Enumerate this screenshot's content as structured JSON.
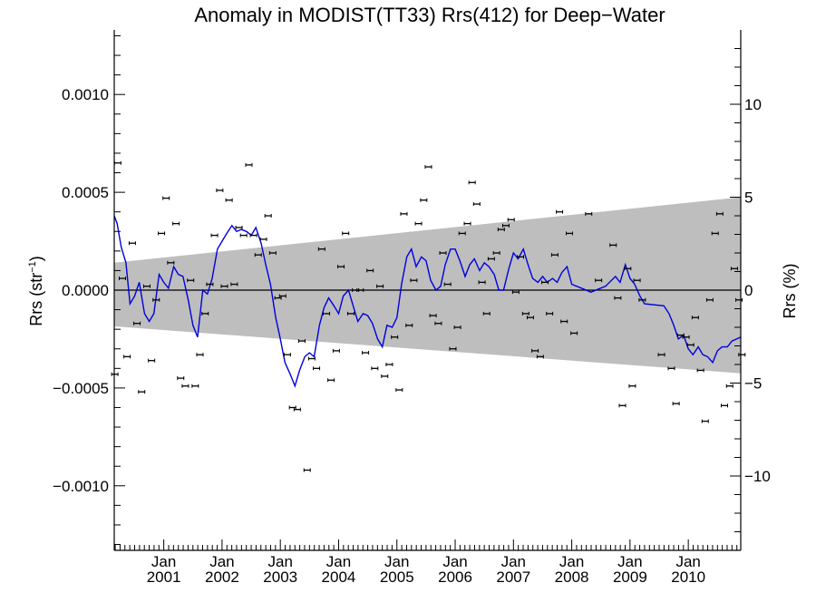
{
  "chart_data": {
    "type": "scatter",
    "title": "Anomaly in MODIST(TT33) Rrs(412) for Deep−Water",
    "ylabel_left_main": "Rrs (str",
    "ylabel_left_sup": "−1",
    "ylabel_left_end": ")",
    "ylabel_right": "Rrs (%)",
    "xlim": [
      2000.15,
      2010.9
    ],
    "ylim": [
      -0.00133,
      0.00133
    ],
    "right_ylim": [
      -14,
      14
    ],
    "x_tick_labels": [
      {
        "x": 2001.0,
        "line1": "Jan",
        "line2": "2001"
      },
      {
        "x": 2002.0,
        "line1": "Jan",
        "line2": "2002"
      },
      {
        "x": 2003.0,
        "line1": "Jan",
        "line2": "2003"
      },
      {
        "x": 2004.0,
        "line1": "Jan",
        "line2": "2004"
      },
      {
        "x": 2005.0,
        "line1": "Jan",
        "line2": "2005"
      },
      {
        "x": 2006.0,
        "line1": "Jan",
        "line2": "2006"
      },
      {
        "x": 2007.0,
        "line1": "Jan",
        "line2": "2007"
      },
      {
        "x": 2008.0,
        "line1": "Jan",
        "line2": "2008"
      },
      {
        "x": 2009.0,
        "line1": "Jan",
        "line2": "2009"
      },
      {
        "x": 2010.0,
        "line1": "Jan",
        "line2": "2010"
      }
    ],
    "y_tick_labels_left": [
      {
        "y": 0.001,
        "label": "0.0010"
      },
      {
        "y": 0.0005,
        "label": "0.0005"
      },
      {
        "y": 0.0,
        "label": "0.0000"
      },
      {
        "y": -0.0005,
        "label": "−0.0005"
      },
      {
        "y": -0.001,
        "label": "−0.0010"
      }
    ],
    "y_tick_labels_right": [
      {
        "y": 10,
        "label": "10"
      },
      {
        "y": 5,
        "label": "5"
      },
      {
        "y": 0,
        "label": "0"
      },
      {
        "y": -5,
        "label": "−5"
      },
      {
        "y": -10,
        "label": "−10"
      }
    ],
    "band": {
      "start": {
        "x": 2000.15,
        "upper": 0.00014,
        "lower": -0.000185
      },
      "end": {
        "x": 2010.9,
        "upper": 0.000475,
        "lower": -0.000425
      },
      "color": "#bebebe"
    },
    "zero_line": true,
    "series": [
      {
        "kind": "points",
        "color": "#000000",
        "x": [
          2000.16,
          2000.21,
          2000.29,
          2000.37,
          2000.46,
          2000.54,
          2000.62,
          2000.71,
          2000.79,
          2000.87,
          2000.96,
          2001.04,
          2001.12,
          2001.21,
          2001.29,
          2001.37,
          2001.46,
          2001.54,
          2001.62,
          2001.71,
          2001.79,
          2001.87,
          2001.96,
          2002.04,
          2002.12,
          2002.21,
          2002.29,
          2002.37,
          2002.46,
          2002.54,
          2002.62,
          2002.71,
          2002.79,
          2002.87,
          2002.96,
          2003.04,
          2003.12,
          2003.21,
          2003.29,
          2003.37,
          2003.46,
          2003.54,
          2003.62,
          2003.71,
          2003.79,
          2003.87,
          2003.96,
          2004.04,
          2004.12,
          2004.21,
          2004.29,
          2004.37,
          2004.46,
          2004.54,
          2004.62,
          2004.71,
          2004.79,
          2004.87,
          2004.96,
          2005.04,
          2005.12,
          2005.21,
          2005.29,
          2005.37,
          2005.46,
          2005.54,
          2005.62,
          2005.71,
          2005.79,
          2005.87,
          2005.96,
          2006.04,
          2006.12,
          2006.21,
          2006.29,
          2006.37,
          2006.46,
          2006.54,
          2006.62,
          2006.71,
          2006.79,
          2006.87,
          2006.96,
          2007.04,
          2007.12,
          2007.21,
          2007.29,
          2007.37,
          2007.46,
          2007.54,
          2007.62,
          2007.71,
          2007.79,
          2007.87,
          2007.96,
          2008.04,
          2008.29,
          2008.46,
          2008.71,
          2008.79,
          2008.87,
          2008.96,
          2009.04,
          2009.12,
          2009.21,
          2009.54,
          2009.71,
          2009.79,
          2009.87,
          2009.96,
          2010.04,
          2010.12,
          2010.21,
          2010.29,
          2010.37,
          2010.46,
          2010.54,
          2010.62,
          2010.71,
          2010.79,
          2010.87,
          2010.92
        ],
        "y": [
          -0.00043,
          0.00065,
          6e-05,
          -0.00034,
          0.00024,
          -0.00017,
          -0.00052,
          2e-05,
          -0.00036,
          -5e-05,
          0.00029,
          0.00047,
          0.00014,
          0.00034,
          -0.00045,
          -0.00049,
          5e-05,
          -0.00049,
          -0.00033,
          -0.00012,
          3e-05,
          0.00028,
          0.00051,
          2e-05,
          0.00046,
          3e-05,
          0.00032,
          0.00028,
          0.00064,
          0.00028,
          0.00018,
          0.00026,
          0.00038,
          0.00019,
          -4e-05,
          -3e-05,
          -0.00033,
          -0.0006,
          -0.00061,
          -0.00026,
          -0.00092,
          -0.00035,
          -0.0004,
          0.00021,
          -0.00012,
          -0.00046,
          -0.00031,
          0.00012,
          0.00029,
          -0.00012,
          0.0,
          0.0,
          -0.00032,
          0.0001,
          -0.0004,
          2e-05,
          -0.00044,
          -0.00038,
          -0.00024,
          -0.00051,
          0.00039,
          -0.00018,
          5e-05,
          0.00034,
          0.00046,
          0.00063,
          -0.00013,
          -0.00017,
          0.00019,
          3e-05,
          -0.0003,
          -0.00019,
          0.00029,
          0.00034,
          0.00055,
          0.00044,
          4e-05,
          -0.00012,
          0.00016,
          0.00019,
          0.00031,
          0.00033,
          0.00036,
          -1e-05,
          0.00017,
          -0.00012,
          -0.00014,
          -0.00031,
          -0.00034,
          4e-05,
          -0.00012,
          0.00018,
          0.0004,
          -0.00016,
          0.00029,
          -0.00022,
          0.00039,
          5e-05,
          0.00023,
          -4e-05,
          -0.00059,
          0.00011,
          -0.00049,
          5e-05,
          -5e-05,
          -0.00033,
          -0.0004,
          -0.00058,
          -0.00023,
          -0.00024,
          -0.00028,
          -0.00014,
          -0.00041,
          -0.00067,
          -5e-05,
          0.00029,
          0.00039,
          -0.00059,
          -0.00049,
          0.00011,
          -5e-05,
          -0.00033
        ]
      },
      {
        "kind": "line",
        "color": "#0000dd",
        "x": [
          2000.15,
          2000.2,
          2000.27,
          2000.35,
          2000.42,
          2000.5,
          2000.58,
          2000.67,
          2000.75,
          2000.83,
          2000.92,
          2001.0,
          2001.08,
          2001.17,
          2001.25,
          2001.33,
          2001.42,
          2001.5,
          2001.58,
          2001.67,
          2001.75,
          2001.83,
          2001.92,
          2002.0,
          2002.08,
          2002.17,
          2002.25,
          2002.33,
          2002.42,
          2002.5,
          2002.58,
          2002.67,
          2002.75,
          2002.83,
          2002.92,
          2003.0,
          2003.08,
          2003.17,
          2003.25,
          2003.33,
          2003.42,
          2003.5,
          2003.58,
          2003.67,
          2003.75,
          2003.83,
          2003.92,
          2004.0,
          2004.08,
          2004.17,
          2004.25,
          2004.33,
          2004.42,
          2004.5,
          2004.58,
          2004.67,
          2004.75,
          2004.83,
          2004.92,
          2005.0,
          2005.08,
          2005.17,
          2005.25,
          2005.33,
          2005.42,
          2005.5,
          2005.58,
          2005.67,
          2005.75,
          2005.83,
          2005.92,
          2006.0,
          2006.08,
          2006.17,
          2006.25,
          2006.33,
          2006.42,
          2006.5,
          2006.58,
          2006.67,
          2006.75,
          2006.83,
          2006.92,
          2007.0,
          2007.08,
          2007.17,
          2007.25,
          2007.33,
          2007.42,
          2007.5,
          2007.58,
          2007.67,
          2007.75,
          2007.83,
          2007.92,
          2008.0,
          2008.33,
          2008.58,
          2008.75,
          2008.83,
          2008.92,
          2009.0,
          2009.08,
          2009.17,
          2009.25,
          2009.58,
          2009.67,
          2009.75,
          2009.83,
          2009.92,
          2010.0,
          2010.08,
          2010.17,
          2010.25,
          2010.33,
          2010.42,
          2010.5,
          2010.58,
          2010.67,
          2010.75,
          2010.83,
          2010.9
        ],
        "y": [
          0.00038,
          0.00034,
          0.00022,
          0.00014,
          -7e-05,
          -3e-05,
          4e-05,
          -0.00012,
          -0.00016,
          -0.00012,
          8e-05,
          4e-05,
          1e-05,
          0.00012,
          8e-05,
          7e-05,
          -5e-05,
          -0.00018,
          -0.00024,
          0.0,
          -2e-05,
          6e-05,
          0.00021,
          0.00025,
          0.00029,
          0.00033,
          0.0003,
          0.00031,
          0.0003,
          0.00028,
          0.00032,
          0.00024,
          0.00013,
          3e-05,
          -0.00014,
          -0.00025,
          -0.00037,
          -0.00043,
          -0.00049,
          -0.00041,
          -0.00034,
          -0.00032,
          -0.00034,
          -0.00018,
          -9e-05,
          -4e-05,
          -8e-05,
          -0.00012,
          -3e-05,
          0.0,
          -8e-05,
          -0.00016,
          -0.00012,
          -0.00013,
          -0.00017,
          -0.00025,
          -0.00029,
          -0.00018,
          -0.00019,
          -0.00014,
          3e-05,
          0.00017,
          0.00021,
          0.00012,
          0.00017,
          0.00015,
          5e-05,
          0.0,
          2e-05,
          0.00013,
          0.00021,
          0.00021,
          0.00015,
          7e-05,
          0.00013,
          0.00016,
          0.0001,
          0.00014,
          0.00012,
          8e-05,
          0.0,
          0.0,
          0.00011,
          0.00019,
          0.00016,
          0.00021,
          0.00013,
          6e-05,
          4e-05,
          7e-05,
          4e-05,
          6e-05,
          4e-05,
          9e-05,
          0.00012,
          3e-05,
          -1e-05,
          2e-05,
          7e-05,
          4e-05,
          0.00013,
          6e-05,
          3e-05,
          -3e-05,
          -7e-05,
          -8e-05,
          -0.00012,
          -0.00018,
          -0.00025,
          -0.00023,
          -0.0003,
          -0.00033,
          -0.00029,
          -0.00033,
          -0.00034,
          -0.00037,
          -0.00031,
          -0.00029,
          -0.00029,
          -0.00026,
          -0.00025,
          -0.00024
        ]
      }
    ]
  }
}
